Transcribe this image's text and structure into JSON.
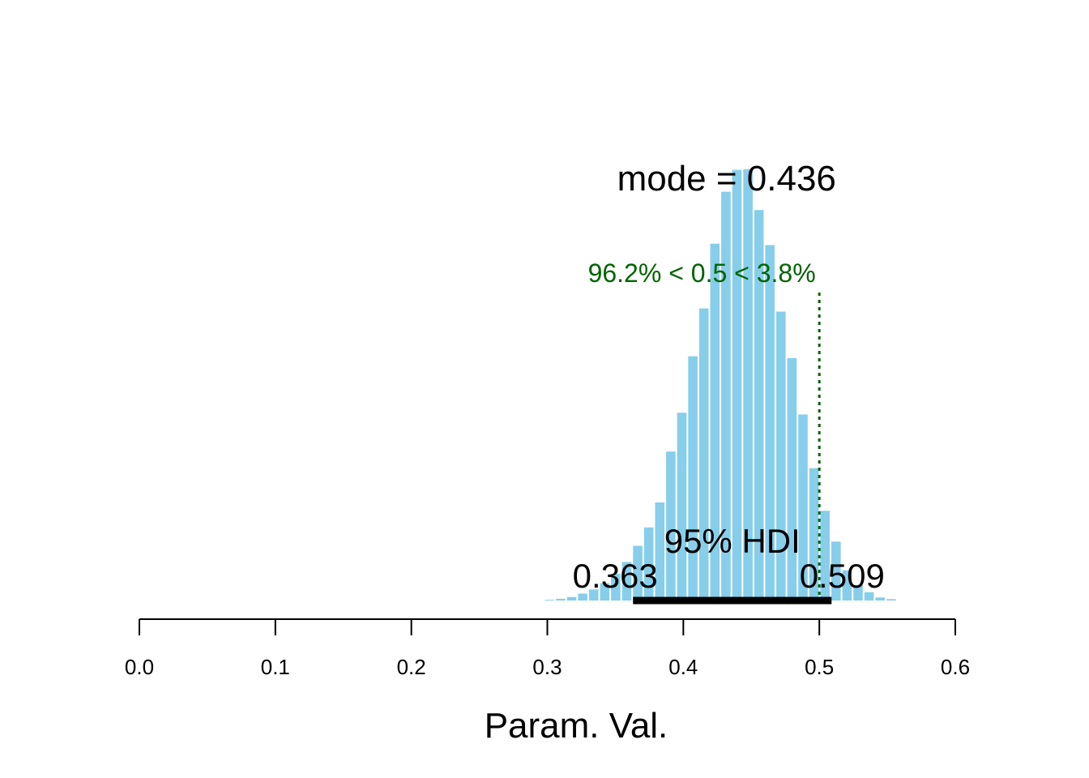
{
  "chart_data": {
    "type": "bar",
    "xlabel": "Param. Val.",
    "xlim": [
      0,
      0.6
    ],
    "xticks": [
      "0.0",
      "0.1",
      "0.2",
      "0.3",
      "0.4",
      "0.5",
      "0.6"
    ],
    "bar_color": "#87CEEB",
    "bin_width": 0.0081,
    "bins": [
      {
        "x": 0.3017,
        "density": 0.02
      },
      {
        "x": 0.3098,
        "density": 0.05
      },
      {
        "x": 0.3179,
        "density": 0.1
      },
      {
        "x": 0.326,
        "density": 0.2
      },
      {
        "x": 0.3341,
        "density": 0.32
      },
      {
        "x": 0.3422,
        "density": 0.5
      },
      {
        "x": 0.3503,
        "density": 0.77
      },
      {
        "x": 0.3584,
        "density": 1.11
      },
      {
        "x": 0.3665,
        "density": 1.58
      },
      {
        "x": 0.3746,
        "density": 2.11
      },
      {
        "x": 0.3827,
        "density": 2.83
      },
      {
        "x": 0.3908,
        "density": 4.3
      },
      {
        "x": 0.3989,
        "density": 5.42
      },
      {
        "x": 0.407,
        "density": 7.05
      },
      {
        "x": 0.4151,
        "density": 8.43
      },
      {
        "x": 0.4232,
        "density": 10.3
      },
      {
        "x": 0.4313,
        "density": 11.8
      },
      {
        "x": 0.4394,
        "density": 12.43
      },
      {
        "x": 0.4475,
        "density": 12.45
      },
      {
        "x": 0.4556,
        "density": 11.27
      },
      {
        "x": 0.4637,
        "density": 10.26
      },
      {
        "x": 0.4718,
        "density": 8.34
      },
      {
        "x": 0.4799,
        "density": 7.0
      },
      {
        "x": 0.488,
        "density": 5.37
      },
      {
        "x": 0.4961,
        "density": 3.82
      },
      {
        "x": 0.5042,
        "density": 2.59
      },
      {
        "x": 0.5123,
        "density": 1.7
      },
      {
        "x": 0.5204,
        "density": 0.87
      },
      {
        "x": 0.5285,
        "density": 0.45
      },
      {
        "x": 0.5366,
        "density": 0.24
      },
      {
        "x": 0.5447,
        "density": 0.09
      },
      {
        "x": 0.5528,
        "density": 0.04
      }
    ],
    "ylim": [
      0,
      13.1
    ],
    "mode": {
      "value": 0.436,
      "label": "mode = 0.436"
    },
    "hdi": {
      "low": 0.363,
      "high": 0.509,
      "low_label": "0.363",
      "high_label": "0.509",
      "label": "95% HDI",
      "color": "#000000"
    },
    "comparison": {
      "value": 0.5,
      "label": "96.2% < 0.5 < 3.8%",
      "color": "#006400"
    }
  }
}
